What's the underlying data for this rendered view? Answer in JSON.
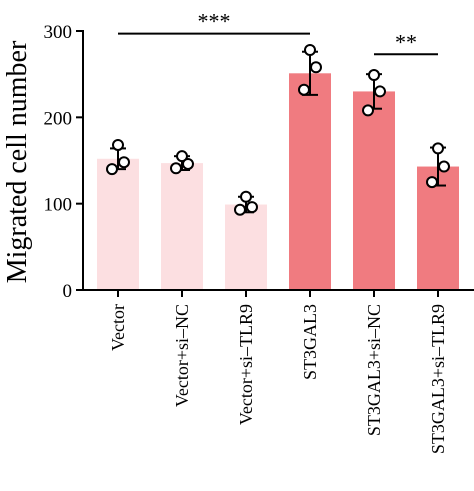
{
  "chart_data": {
    "type": "bar",
    "title": "",
    "xlabel": "",
    "ylabel": "Migrated cell number",
    "ylim": [
      0,
      300
    ],
    "yticks": [
      0,
      100,
      200,
      300
    ],
    "categories": [
      "Vector",
      "Vector+si–NC",
      "Vector+si–TLR9",
      "ST3GAL3",
      "ST3GAL3+si–NC",
      "ST3GAL3+si–TLR9"
    ],
    "values": [
      152,
      147,
      99,
      251,
      230,
      143
    ],
    "errors": [
      12,
      8,
      9,
      25,
      20,
      22
    ],
    "points": [
      [
        168,
        148,
        140
      ],
      [
        155,
        146,
        141
      ],
      [
        108,
        96,
        93
      ],
      [
        278,
        258,
        232
      ],
      [
        249,
        230,
        208
      ],
      [
        164,
        143,
        125
      ]
    ],
    "bar_colors": [
      "#fcdfe1",
      "#fcdfe1",
      "#fcdfe1",
      "#f07b80",
      "#f07b80",
      "#f07b80"
    ],
    "significance": [
      {
        "from": 0,
        "to": 3,
        "label": "***",
        "y": 297
      },
      {
        "from": 4,
        "to": 5,
        "label": "**",
        "y": 273
      }
    ],
    "grid": false,
    "legend": "none"
  }
}
